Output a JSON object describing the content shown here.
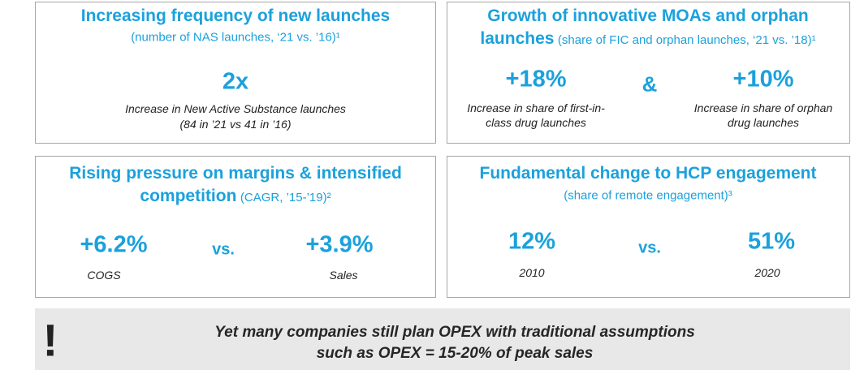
{
  "panels": [
    {
      "title": [
        "Increasing frequency of new launches"
      ],
      "subtitle": "(number of NAS launches, ‘21 vs. ’16)¹",
      "stats": [
        {
          "value": "2x",
          "description": [
            "Increase in New Active Substance launches",
            "(84 in ’21 vs 41 in ’16)"
          ]
        }
      ]
    },
    {
      "title": [
        "Growth of innovative MOAs and orphan",
        "launches"
      ],
      "subtitle": "(share of FIC and orphan launches, ‘21 vs. ’18)¹",
      "connector": "&",
      "stats": [
        {
          "value": "+18%",
          "description": [
            "Increase in share of first-in-",
            "class drug launches"
          ]
        },
        {
          "value": "+10%",
          "description": [
            "Increase in share of orphan",
            "drug launches"
          ]
        }
      ]
    },
    {
      "title": [
        "Rising pressure on margins & intensified",
        "competition"
      ],
      "subtitle": "(CAGR, ’15-’19)²",
      "connector": "vs.",
      "stats": [
        {
          "value": "+6.2%",
          "description": [
            "COGS"
          ]
        },
        {
          "value": "+3.9%",
          "description": [
            "Sales"
          ]
        }
      ]
    },
    {
      "title": [
        "Fundamental change to HCP engagement"
      ],
      "subtitle": "(share of remote engagement)³",
      "connector": "vs.",
      "stats": [
        {
          "value": "12%",
          "description": [
            "2010"
          ]
        },
        {
          "value": "51%",
          "description": [
            "2020"
          ]
        }
      ]
    }
  ],
  "banner": {
    "icon": "!",
    "lines": [
      "Yet many companies still plan OPEX with traditional assumptions",
      "such as OPEX = 15-20% of peak sales"
    ]
  }
}
